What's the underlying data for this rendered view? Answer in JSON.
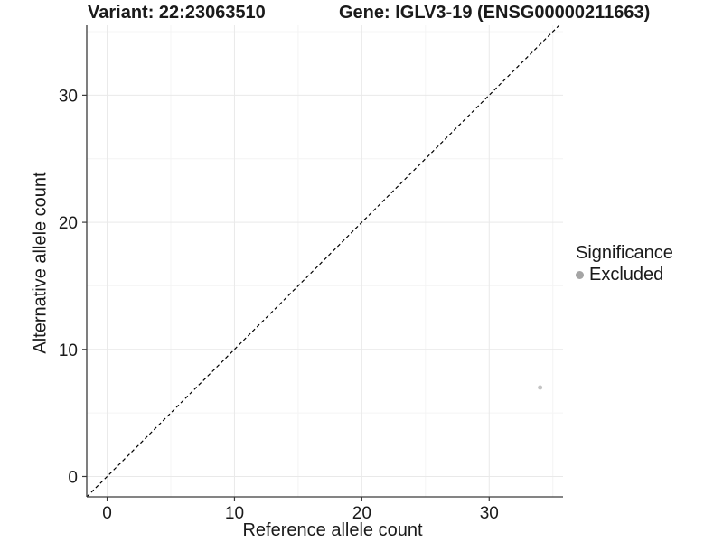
{
  "chart_data": {
    "type": "scatter",
    "titles": {
      "left": "Variant: 22:23063510",
      "right": "Gene: IGLV3-19 (ENSG00000211663)"
    },
    "xlabel": "Reference allele count",
    "ylabel": "Alternative allele count",
    "xlim": [
      -1.6,
      35.8
    ],
    "ylim": [
      -1.6,
      35.5
    ],
    "xticks": [
      0,
      10,
      20,
      30
    ],
    "yticks": [
      0,
      10,
      20,
      30
    ],
    "minor_xticks": [
      5,
      15,
      25,
      35
    ],
    "minor_yticks": [
      5,
      15,
      25,
      35
    ],
    "grid": true,
    "identity_line": {
      "slope": 1,
      "intercept": 0,
      "style": "dashed",
      "color": "#000000"
    },
    "legend": {
      "title": "Significance",
      "position": "right",
      "entries": [
        {
          "label": "Excluded",
          "color": "#a5a5a5"
        }
      ]
    },
    "series": [
      {
        "name": "Excluded",
        "color": "#c4c4c4",
        "marker_radius": 2.5,
        "points": [
          [
            34,
            7
          ]
        ]
      }
    ],
    "colors": {
      "background": "#ffffff",
      "grid_major": "#e9e9e9",
      "grid_minor": "#f4f4f4",
      "axis": "#3a3a3a",
      "text": "#1a1a1a"
    }
  }
}
